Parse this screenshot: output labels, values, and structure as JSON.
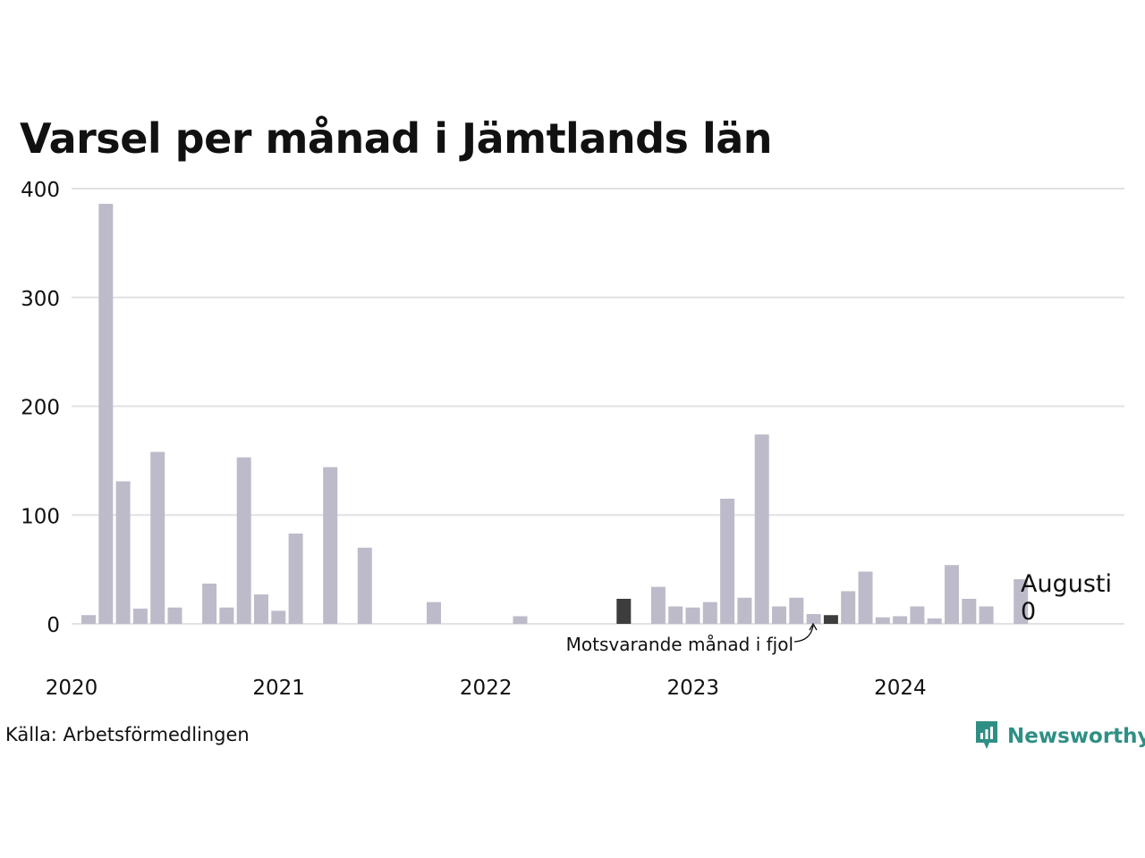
{
  "chart_data": {
    "type": "bar",
    "title": "Varsel per månad i Jämtlands län",
    "xlabel": "",
    "ylabel": "",
    "ylim": [
      0,
      400
    ],
    "yticks": [
      0,
      100,
      200,
      300,
      400
    ],
    "xtick_labels": [
      "2020",
      "2021",
      "2022",
      "2023",
      "2024"
    ],
    "start_month": "2020-01",
    "months": [
      "2020-01",
      "2020-02",
      "2020-03",
      "2020-04",
      "2020-05",
      "2020-06",
      "2020-07",
      "2020-08",
      "2020-09",
      "2020-10",
      "2020-11",
      "2020-12",
      "2021-01",
      "2021-02",
      "2021-03",
      "2021-04",
      "2021-05",
      "2021-06",
      "2021-07",
      "2021-08",
      "2021-09",
      "2021-10",
      "2021-11",
      "2021-12",
      "2022-01",
      "2022-02",
      "2022-03",
      "2022-04",
      "2022-05",
      "2022-06",
      "2022-07",
      "2022-08",
      "2022-09",
      "2022-10",
      "2022-11",
      "2022-12",
      "2023-01",
      "2023-02",
      "2023-03",
      "2023-04",
      "2023-05",
      "2023-06",
      "2023-07",
      "2023-08",
      "2023-09",
      "2023-10",
      "2023-11",
      "2023-12",
      "2024-01",
      "2024-02",
      "2024-03",
      "2024-04",
      "2024-05",
      "2024-06",
      "2024-07",
      "2024-08"
    ],
    "values": [
      8,
      386,
      131,
      14,
      158,
      15,
      0,
      37,
      15,
      153,
      27,
      12,
      83,
      0,
      144,
      0,
      70,
      0,
      0,
      0,
      20,
      0,
      0,
      0,
      0,
      7,
      0,
      0,
      0,
      0,
      0,
      23,
      0,
      34,
      16,
      15,
      20,
      115,
      24,
      174,
      16,
      24,
      9,
      8,
      30,
      48,
      6,
      7,
      16,
      5,
      54,
      23,
      16,
      0,
      41,
      0
    ],
    "highlight_indices": [
      31,
      43
    ],
    "colors": {
      "bar": "#bdbbc9",
      "highlight": "#3d3d3d",
      "grid": "#e2e2e2"
    },
    "annotations": {
      "comparison_label": "Motsvarande månad i fjol",
      "current_month": "Augusti",
      "current_value": "0"
    }
  },
  "footer": {
    "source": "Källa: Arbetsförmedlingen",
    "brand": "Newsworthy",
    "brand_color": "#2f8f85",
    "brand_icon": "newsworthy-logo-icon"
  }
}
